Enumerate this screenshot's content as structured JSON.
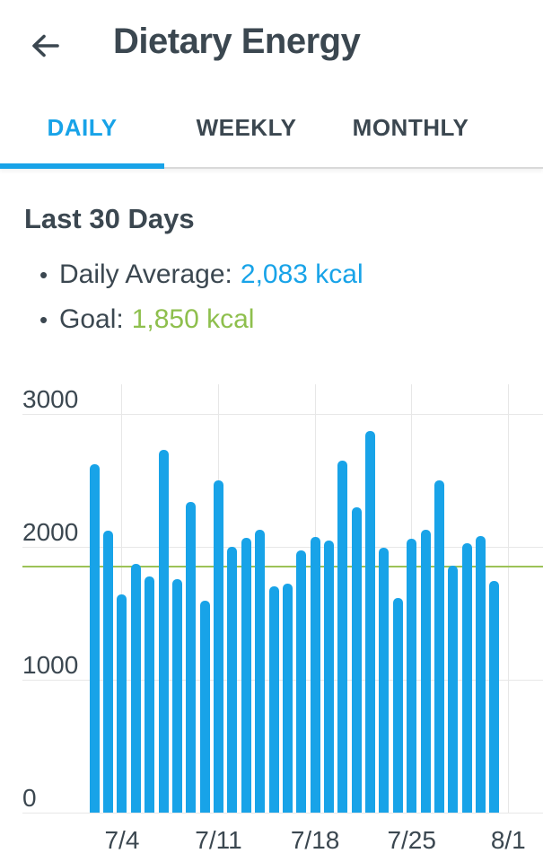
{
  "header": {
    "title": "Dietary Energy",
    "back_icon": "arrow-left"
  },
  "tabs": [
    {
      "label": "DAILY",
      "active": true
    },
    {
      "label": "WEEKLY",
      "active": false
    },
    {
      "label": "MONTHLY",
      "active": false
    }
  ],
  "summary": {
    "heading": "Last 30 Days",
    "bullet_glyph": "•",
    "bullets": [
      {
        "label": "Daily Average:",
        "value": "2,083 kcal",
        "color_role": "blue"
      },
      {
        "label": "Goal:",
        "value": "1,850 kcal",
        "color_role": "green"
      }
    ]
  },
  "colors": {
    "accent_blue": "#18a3e8",
    "bar_blue": "#18a3e8",
    "goal_green_text": "#8ebf4d",
    "goal_green_line": "#9cc257",
    "text_dark": "#3b4750",
    "gridline": "#e7e7e7"
  },
  "chart_data": {
    "type": "bar",
    "title": "Dietary Energy - Daily, Last 30 Days",
    "unit": "kcal",
    "x": [
      "7/2",
      "7/3",
      "7/4",
      "7/5",
      "7/6",
      "7/7",
      "7/8",
      "7/9",
      "7/10",
      "7/11",
      "7/12",
      "7/13",
      "7/14",
      "7/15",
      "7/16",
      "7/17",
      "7/18",
      "7/19",
      "7/20",
      "7/21",
      "7/22",
      "7/23",
      "7/24",
      "7/25",
      "7/26",
      "7/27",
      "7/28",
      "7/29",
      "7/30",
      "7/31"
    ],
    "values": [
      2620,
      2120,
      1645,
      1875,
      1780,
      2730,
      1755,
      2340,
      1595,
      2500,
      2000,
      2070,
      2130,
      1700,
      1725,
      1970,
      2075,
      2050,
      2650,
      2300,
      2870,
      1990,
      1615,
      2060,
      2130,
      2500,
      1860,
      2025,
      2080,
      1740
    ],
    "xticks": [
      {
        "label": "7/4",
        "index": 2
      },
      {
        "label": "7/11",
        "index": 9
      },
      {
        "label": "7/18",
        "index": 16
      },
      {
        "label": "7/25",
        "index": 23
      },
      {
        "label": "8/1",
        "index": 30
      }
    ],
    "yticks": [
      0,
      1000,
      2000,
      3000
    ],
    "ylim": [
      0,
      3000
    ],
    "goal_line": 1850,
    "grid": true,
    "legend": false
  }
}
